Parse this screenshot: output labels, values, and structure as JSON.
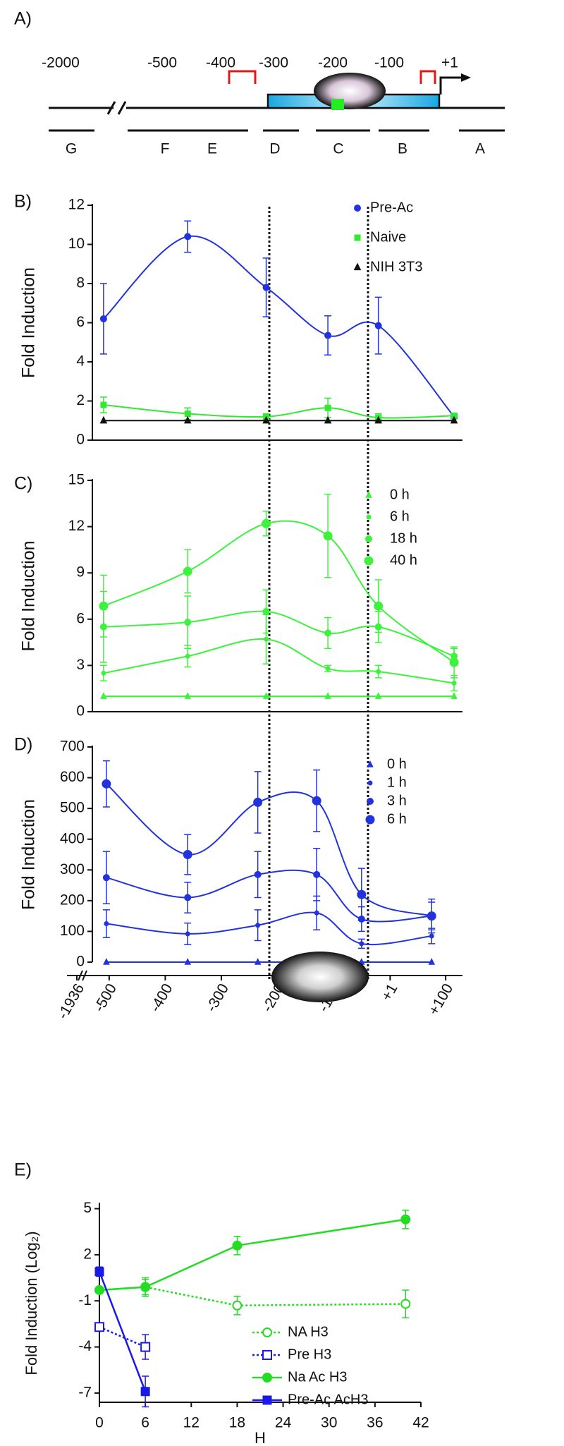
{
  "panel_a": {
    "label": "A)",
    "positions": [
      "-2000",
      "-500",
      "-400",
      "-300",
      "-200",
      "-100",
      "+1"
    ],
    "regions": [
      "G",
      "F",
      "E",
      "D",
      "C",
      "B",
      "A"
    ]
  },
  "chart_data": [
    {
      "type": "line",
      "panel_label": "B)",
      "ylabel": "Fold Induction",
      "smooth": true,
      "legend": "upper right",
      "x": [
        -510,
        -360,
        -220,
        -110,
        -20,
        115
      ],
      "xlim": [
        -530,
        130
      ],
      "ylim": [
        0,
        12
      ],
      "yticks": [
        0,
        2,
        4,
        6,
        8,
        10,
        12
      ],
      "series": [
        {
          "name": "Pre-Ac",
          "color": "#2233dd",
          "marker": "circle",
          "marker_size": 4.5,
          "filled": true,
          "values": [
            6.2,
            10.4,
            7.8,
            5.35,
            5.85,
            1.2
          ],
          "errors": [
            1.8,
            0.8,
            1.5,
            1.0,
            1.45,
            0.1
          ]
        },
        {
          "name": "Naive",
          "color": "#33e833",
          "marker": "square",
          "marker_size": 4,
          "filled": true,
          "values": [
            1.8,
            1.35,
            1.2,
            1.65,
            1.15,
            1.25
          ],
          "errors": [
            0.4,
            0.3,
            0.15,
            0.5,
            0.2,
            0.1
          ]
        },
        {
          "name": "NIH 3T3",
          "color": "#111111",
          "marker": "triangle",
          "marker_size": 4.5,
          "filled": true,
          "values": [
            1,
            1,
            1,
            1,
            1,
            1
          ]
        }
      ]
    },
    {
      "type": "line",
      "panel_label": "C)",
      "ylabel": "Fold Induction",
      "smooth": true,
      "legend": "upper right",
      "x": [
        -510,
        -360,
        -220,
        -110,
        -20,
        115
      ],
      "xlim": [
        -530,
        130
      ],
      "ylim": [
        0,
        15
      ],
      "yticks": [
        0,
        3,
        6,
        9,
        12,
        15
      ],
      "series": [
        {
          "name": "0 h",
          "color": "#3df23d",
          "marker": "triangle",
          "marker_size": 4,
          "filled": true,
          "values": [
            1,
            1,
            1,
            1,
            1,
            1
          ]
        },
        {
          "name": "6 h",
          "color": "#3df23d",
          "marker": "circle",
          "marker_size": 3,
          "filled": true,
          "values": [
            2.5,
            3.6,
            4.7,
            2.8,
            2.6,
            1.85
          ],
          "errors": [
            0.5,
            0.7,
            1.6,
            0.2,
            0.4,
            0.5
          ]
        },
        {
          "name": "18 h",
          "color": "#3df23d",
          "marker": "circle",
          "marker_size": 4.5,
          "filled": true,
          "values": [
            5.5,
            5.8,
            6.5,
            5.1,
            5.5,
            3.6
          ],
          "errors": [
            2.3,
            1.7,
            1.4,
            1.0,
            1.0,
            0.5
          ]
        },
        {
          "name": "40 h",
          "color": "#3df23d",
          "marker": "circle",
          "marker_size": 6,
          "filled": true,
          "values": [
            6.85,
            9.1,
            12.2,
            11.4,
            6.85,
            3.2
          ],
          "errors": [
            2.0,
            1.4,
            0.8,
            2.7,
            1.7,
            1.0
          ]
        }
      ]
    },
    {
      "type": "line",
      "panel_label": "D)",
      "ylabel": "Fold Induction",
      "smooth": true,
      "legend": "upper right",
      "axis_break": true,
      "x": [
        -505,
        -360,
        -235,
        -130,
        -50,
        75
      ],
      "xlim": [
        -530,
        130
      ],
      "xticks": [
        -1936,
        -500,
        -400,
        -300,
        -200,
        -100,
        {
          "value": 1,
          "label": "+1"
        },
        {
          "value": 100,
          "label": "+100"
        }
      ],
      "ylim": [
        0,
        700
      ],
      "yticks": [
        0,
        100,
        200,
        300,
        400,
        500,
        600,
        700
      ],
      "series": [
        {
          "name": "0 h",
          "color": "#2233dd",
          "marker": "triangle",
          "marker_size": 4,
          "filled": true,
          "values": [
            0,
            0,
            0,
            0,
            0,
            0
          ]
        },
        {
          "name": "1 h",
          "color": "#2233dd",
          "marker": "circle",
          "marker_size": 3,
          "filled": true,
          "values": [
            125,
            92,
            120,
            160,
            60,
            85
          ],
          "errors": [
            45,
            35,
            50,
            55,
            15,
            25
          ]
        },
        {
          "name": "3 h",
          "color": "#2233dd",
          "marker": "circle",
          "marker_size": 4.5,
          "filled": true,
          "values": [
            275,
            210,
            285,
            285,
            140,
            150
          ],
          "errors": [
            85,
            50,
            75,
            85,
            40,
            55
          ]
        },
        {
          "name": "6 h",
          "color": "#2233dd",
          "marker": "circle",
          "marker_size": 6,
          "filled": true,
          "values": [
            580,
            350,
            520,
            525,
            220,
            150
          ],
          "errors": [
            75,
            65,
            100,
            100,
            85,
            45
          ]
        }
      ]
    },
    {
      "type": "line",
      "panel_label": "E)",
      "ylabel": "Fold Induction (Log₂)",
      "xlabel": "H",
      "smooth": false,
      "legend": "lower right",
      "legend_lines": true,
      "x": [
        0,
        6,
        18,
        40
      ],
      "xlim": [
        0,
        42
      ],
      "xticks": [
        0,
        6,
        12,
        18,
        24,
        30,
        36,
        42
      ],
      "ylim": [
        -7.6,
        5.3
      ],
      "yticks": [
        -7,
        -4,
        -1,
        2,
        5
      ],
      "series": [
        {
          "name": "NA H3",
          "color": "#22dd22",
          "marker": "circle",
          "marker_size": 6,
          "filled": false,
          "dash": "3 3",
          "values": [
            -0.3,
            -0.1,
            -1.3,
            -1.2
          ],
          "errors": [
            null,
            0.5,
            0.6,
            0.9
          ]
        },
        {
          "name": "Pre H3",
          "color": "#1a1ae6",
          "marker": "square",
          "marker_size": 6,
          "filled": false,
          "dash": "3 3",
          "values": [
            -2.7,
            -4.0,
            null,
            null
          ],
          "errors": [
            null,
            0.8,
            null,
            null
          ]
        },
        {
          "name": "Na Ac H3",
          "color": "#22dd22",
          "marker": "circle",
          "marker_size": 6.5,
          "filled": true,
          "values": [
            -0.3,
            -0.1,
            2.6,
            4.3
          ],
          "errors": [
            0.2,
            0.6,
            0.6,
            0.6
          ]
        },
        {
          "name": "Pre-Ac AcH3",
          "color": "#1a1ae6",
          "marker": "square",
          "marker_size": 6,
          "filled": true,
          "values": [
            0.9,
            -6.9,
            null,
            null
          ],
          "errors": [
            0.3,
            1.0,
            null,
            null
          ]
        }
      ]
    }
  ]
}
